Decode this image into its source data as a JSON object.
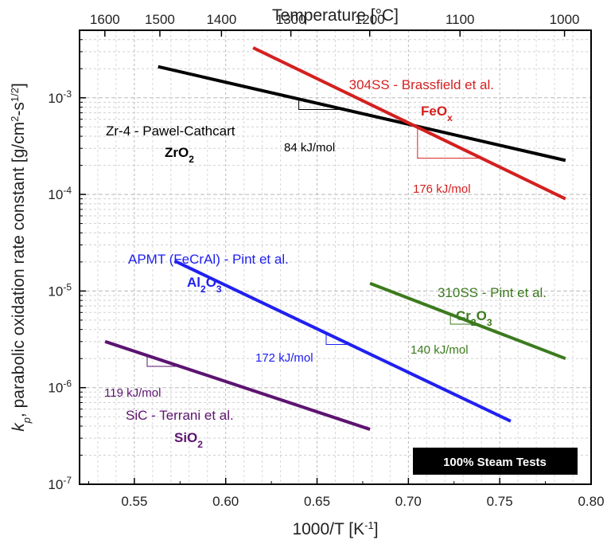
{
  "chart_data": {
    "type": "line",
    "xlabel": "1000/T [K",
    "xlabel_sup": "-1",
    "x2label": "Temperature [°C]",
    "ylabel": {
      "k": "k",
      "p": "p",
      "text": ", parabolic oxidation rate constant [g/cm",
      "sup1": "2",
      "dash": "-s",
      "sup2": "1/2",
      "close": "]"
    },
    "xlim": [
      0.52,
      0.8
    ],
    "ylim": [
      1e-07,
      0.005
    ],
    "yscale": "log",
    "grid": true,
    "xticks": [
      {
        "value": 0.55,
        "label": "0.55"
      },
      {
        "value": 0.6,
        "label": "0.60"
      },
      {
        "value": 0.65,
        "label": "0.65"
      },
      {
        "value": 0.7,
        "label": "0.70"
      },
      {
        "value": 0.75,
        "label": "0.75"
      },
      {
        "value": 0.8,
        "label": "0.80"
      }
    ],
    "yticks": [
      {
        "value": 0.001,
        "base": "10",
        "exp": "-3"
      },
      {
        "value": 0.0001,
        "base": "10",
        "exp": "-4"
      },
      {
        "value": 1e-05,
        "base": "10",
        "exp": "-5"
      },
      {
        "value": 1e-06,
        "base": "10",
        "exp": "-6"
      },
      {
        "value": 1e-07,
        "base": "10",
        "exp": "-7"
      }
    ],
    "top_ticks": [
      {
        "temp_c": 1600,
        "label": "1600"
      },
      {
        "temp_c": 1500,
        "label": "1500"
      },
      {
        "temp_c": 1400,
        "label": "1400"
      },
      {
        "temp_c": 1300,
        "label": "1300"
      },
      {
        "temp_c": 1200,
        "label": "1200"
      },
      {
        "temp_c": 1100,
        "label": "1100"
      },
      {
        "temp_c": 1000,
        "label": "1000"
      }
    ],
    "series": [
      {
        "name": "Zr-4 - Pawel-Cathcart",
        "oxide": "ZrO",
        "oxide_sub": "2",
        "color": "#000000",
        "x": [
          0.563,
          0.786
        ],
        "y": [
          0.0021,
          0.000225
        ],
        "activation_energy": "84 kJ/mol"
      },
      {
        "name": "304SS - Brassfield et al.",
        "oxide": "FeO",
        "oxide_sub": "x",
        "color": "#d42020",
        "x": [
          0.615,
          0.786
        ],
        "y": [
          0.0033,
          9e-05
        ],
        "activation_energy": "176 kJ/mol"
      },
      {
        "name": "APMT (FeCrAl) - Pint et al.",
        "oxide": "Al",
        "oxide_sub": "2",
        "oxide_tail": "O",
        "oxide_sub2": "3",
        "color": "#2020f0",
        "x": [
          0.572,
          0.756
        ],
        "y": [
          2.05e-05,
          4.5e-07
        ],
        "activation_energy": "172 kJ/mol"
      },
      {
        "name": "310SS - Pint et al.",
        "oxide": "Cr",
        "oxide_sub": "2",
        "oxide_tail": "O",
        "oxide_sub2": "3",
        "color": "#3c7a1e",
        "x": [
          0.679,
          0.786
        ],
        "y": [
          1.2e-05,
          2e-06
        ],
        "activation_energy": "140 kJ/mol"
      },
      {
        "name": "SiC - Terrani et al.",
        "oxide": "SiO",
        "oxide_sub": "2",
        "color": "#5c1470",
        "x": [
          0.534,
          0.679
        ],
        "y": [
          3e-06,
          3.7e-07
        ],
        "activation_energy": "119 kJ/mol"
      }
    ],
    "annotation": "100% Steam Tests"
  }
}
